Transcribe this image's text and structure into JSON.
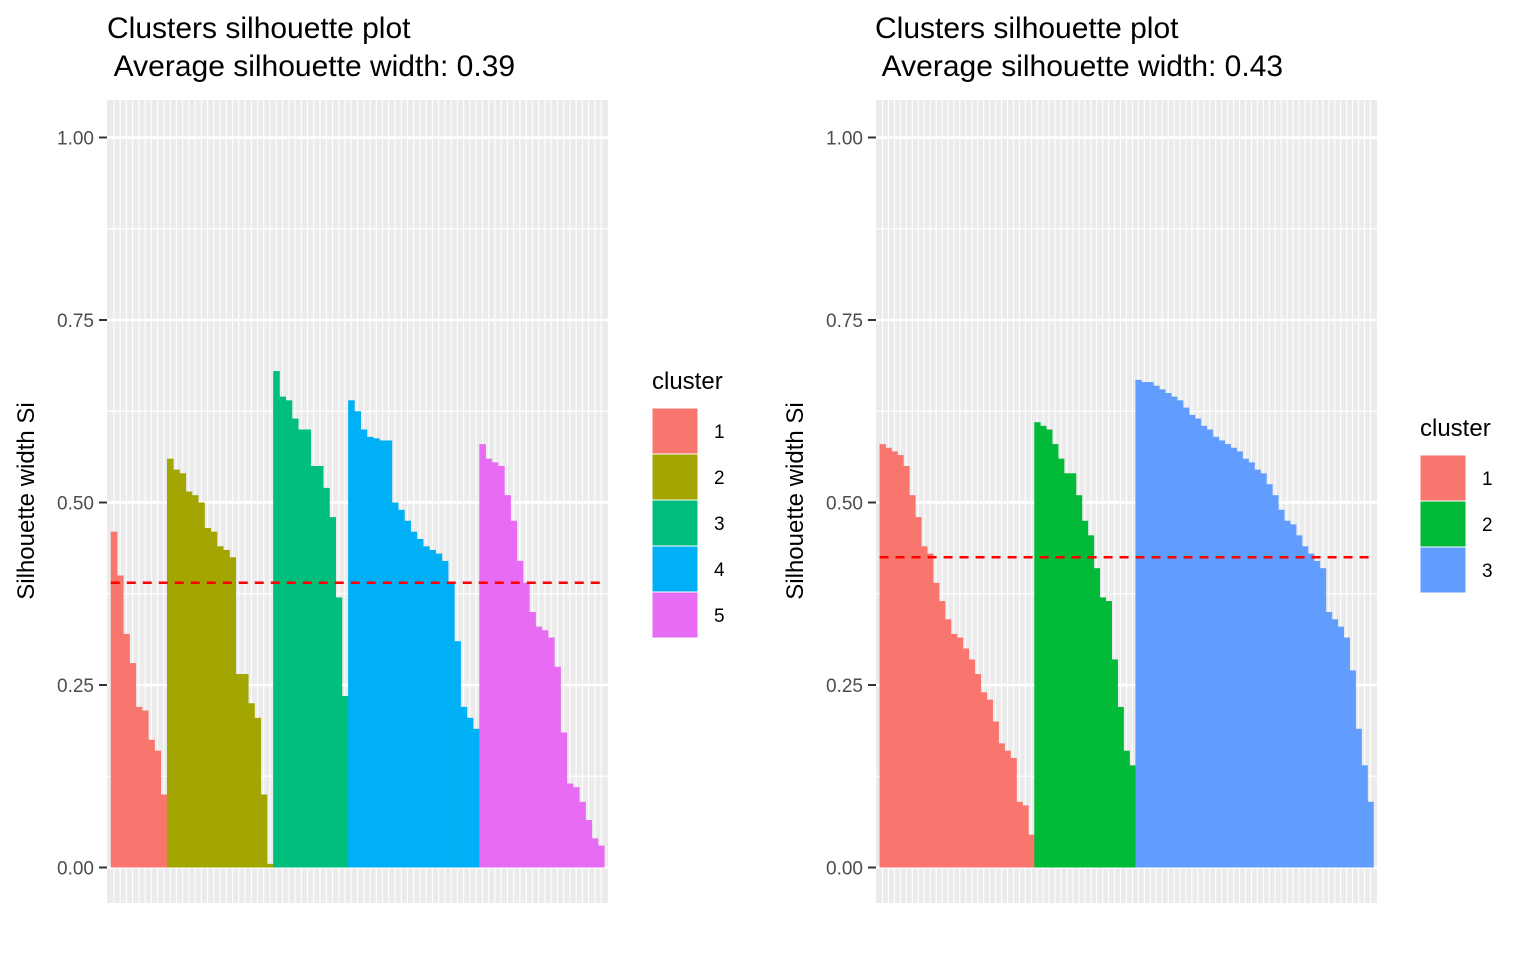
{
  "chart_data": [
    {
      "type": "bar",
      "title": "Clusters silhouette plot",
      "subtitle": " Average silhouette width: 0.39",
      "xlabel": "",
      "ylabel": "Silhouette width Si",
      "ylim": [
        0,
        1
      ],
      "yticks": [
        "0.00",
        "0.25",
        "0.50",
        "0.75",
        "1.00"
      ],
      "grid": true,
      "average_line": 0.39,
      "legend": {
        "title": "cluster",
        "position": "right"
      },
      "clusters": [
        {
          "name": "1",
          "color": "#F8766D",
          "values": [
            0.46,
            0.4,
            0.32,
            0.28,
            0.22,
            0.215,
            0.175,
            0.16,
            0.1
          ]
        },
        {
          "name": "2",
          "color": "#A3A500",
          "values": [
            0.56,
            0.545,
            0.54,
            0.515,
            0.51,
            0.5,
            0.465,
            0.46,
            0.44,
            0.435,
            0.425,
            0.265,
            0.265,
            0.225,
            0.205,
            0.1,
            0.005
          ]
        },
        {
          "name": "3",
          "color": "#00BF7D",
          "values": [
            0.68,
            0.645,
            0.64,
            0.615,
            0.6,
            0.6,
            0.55,
            0.55,
            0.52,
            0.48,
            0.37,
            0.235
          ]
        },
        {
          "name": "4",
          "color": "#00B0F6",
          "values": [
            0.64,
            0.625,
            0.6,
            0.59,
            0.588,
            0.585,
            0.585,
            0.5,
            0.49,
            0.475,
            0.46,
            0.45,
            0.44,
            0.435,
            0.43,
            0.42,
            0.39,
            0.31,
            0.22,
            0.205,
            0.19
          ]
        },
        {
          "name": "5",
          "color": "#E76BF3",
          "values": [
            0.58,
            0.56,
            0.555,
            0.55,
            0.51,
            0.475,
            0.42,
            0.39,
            0.35,
            0.33,
            0.325,
            0.315,
            0.275,
            0.185,
            0.115,
            0.11,
            0.09,
            0.065,
            0.04,
            0.03
          ]
        }
      ]
    },
    {
      "type": "bar",
      "title": "Clusters silhouette plot",
      "subtitle": " Average silhouette width: 0.43",
      "xlabel": "",
      "ylabel": "Silhouette width Si",
      "ylim": [
        0,
        1
      ],
      "yticks": [
        "0.00",
        "0.25",
        "0.50",
        "0.75",
        "1.00"
      ],
      "grid": true,
      "average_line": 0.425,
      "legend": {
        "title": "cluster",
        "position": "right"
      },
      "clusters": [
        {
          "name": "1",
          "color": "#F8766D",
          "values": [
            0.58,
            0.575,
            0.57,
            0.565,
            0.55,
            0.51,
            0.48,
            0.44,
            0.43,
            0.39,
            0.365,
            0.34,
            0.32,
            0.315,
            0.3,
            0.285,
            0.265,
            0.24,
            0.23,
            0.2,
            0.17,
            0.16,
            0.15,
            0.09,
            0.085,
            0.045
          ]
        },
        {
          "name": "2",
          "color": "#00BA38",
          "values": [
            0.61,
            0.605,
            0.6,
            0.58,
            0.56,
            0.54,
            0.54,
            0.51,
            0.475,
            0.455,
            0.41,
            0.37,
            0.365,
            0.285,
            0.22,
            0.16,
            0.14
          ]
        },
        {
          "name": "3",
          "color": "#619CFF",
          "values": [
            0.668,
            0.665,
            0.665,
            0.66,
            0.655,
            0.65,
            0.645,
            0.64,
            0.63,
            0.62,
            0.615,
            0.605,
            0.6,
            0.59,
            0.585,
            0.58,
            0.575,
            0.57,
            0.56,
            0.555,
            0.545,
            0.54,
            0.525,
            0.51,
            0.49,
            0.475,
            0.47,
            0.455,
            0.44,
            0.43,
            0.42,
            0.41,
            0.35,
            0.34,
            0.33,
            0.315,
            0.27,
            0.19,
            0.14,
            0.09
          ]
        }
      ]
    }
  ]
}
